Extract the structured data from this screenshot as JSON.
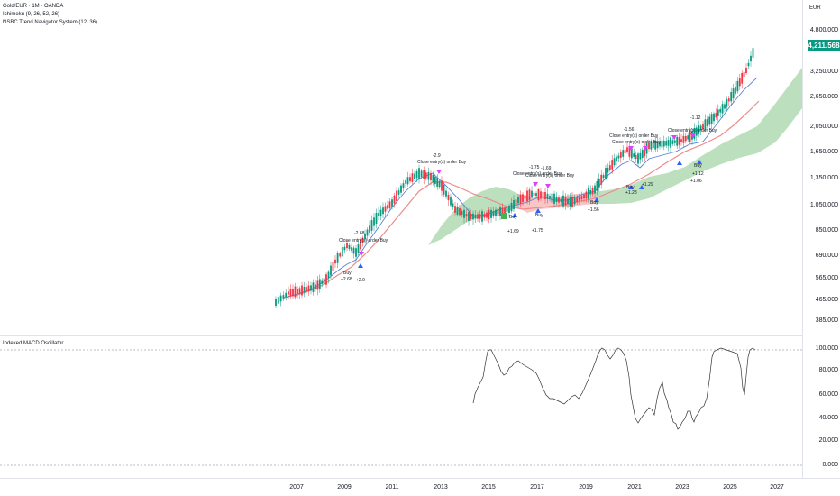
{
  "legend": {
    "symbol": "Gold/EUR · 1M · OANDA",
    "ind1": "Ichimoku (9, 26, 52, 26)",
    "ind2": "NSBC Trend Navigator System (12, 36)"
  },
  "currency": "EUR",
  "last_price": "4,211.568",
  "price_axis": [
    "4,800.000",
    "3,250.000",
    "2,650.000",
    "2,050.000",
    "1,650.000",
    "1,350.000",
    "1,050.000",
    "850.000",
    "690.000",
    "565.000",
    "465.000",
    "385.000"
  ],
  "osc_title": "Indexed MACD Oscillator",
  "osc_axis": [
    "100.000",
    "80.000",
    "60.000",
    "40.000",
    "20.000",
    "0.000"
  ],
  "years": [
    "2007",
    "2009",
    "2011",
    "2013",
    "2015",
    "2017",
    "2019",
    "2021",
    "2023",
    "2025",
    "2027"
  ],
  "annotations": [
    {
      "text": "Close entry(s) order Buy"
    },
    {
      "text": "-2.68"
    },
    {
      "text": "Buy"
    },
    {
      "text": "+2.68"
    },
    {
      "text": "+2.9"
    },
    {
      "text": "-2.9"
    },
    {
      "text": "Close entry(s) order Buy"
    },
    {
      "text": "-1.75"
    },
    {
      "text": "Close entry(s) order Buy"
    },
    {
      "text": "Buy"
    },
    {
      "text": "+1.75"
    },
    {
      "text": "-1.69"
    },
    {
      "text": "Close entry(s) order Buy"
    },
    {
      "text": "Buy"
    },
    {
      "text": "+1.69"
    },
    {
      "text": "Buy"
    },
    {
      "text": "+1.56"
    },
    {
      "text": "-1.56"
    },
    {
      "text": "Close entry(s) order Buy"
    },
    {
      "text": "Close entry(s) order Buy"
    },
    {
      "text": "Buy"
    },
    {
      "text": "+1.28"
    },
    {
      "text": "+1.29"
    },
    {
      "text": "-1.12"
    },
    {
      "text": "Close entry(s) order Buy"
    },
    {
      "text": "Buy"
    },
    {
      "text": "+1.12"
    },
    {
      "text": "+1.06"
    }
  ],
  "colors": {
    "bull": "#089981",
    "bear": "#f23645",
    "fast": "#5b7fd6",
    "slow": "#f08a8a",
    "cloud_green": "#a5d6a7",
    "cloud_red": "#f7b3b3",
    "signal": "#e040fb"
  }
}
